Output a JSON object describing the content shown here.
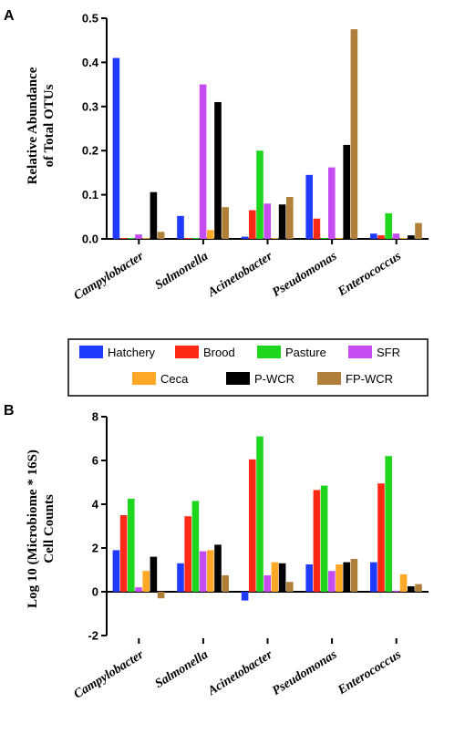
{
  "legend": {
    "entries": [
      {
        "name": "Hatchery",
        "color": "#1f3bff"
      },
      {
        "name": "Brood",
        "color": "#ff2a16"
      },
      {
        "name": "Pasture",
        "color": "#1ed61e"
      },
      {
        "name": "SFR",
        "color": "#c44cf0"
      },
      {
        "name": "Ceca",
        "color": "#ffa726"
      },
      {
        "name": "P-WCR",
        "color": "#000000"
      },
      {
        "name": "FP-WCR",
        "color": "#b0803a"
      }
    ]
  },
  "chart_data": [
    {
      "panel": "A",
      "type": "bar",
      "ylabel": [
        "Relative Abundance",
        "of Total OTUs"
      ],
      "ylim": [
        0,
        0.5
      ],
      "yticks": [
        "0.0",
        "0.1",
        "0.2",
        "0.3",
        "0.4",
        "0.5"
      ],
      "categories": [
        "Campylobacter",
        "Salmonella",
        "Acinetobacter",
        "Pseudomonas",
        "Enterococcus"
      ],
      "series": [
        {
          "name": "Hatchery",
          "values": [
            0.41,
            0.052,
            0.005,
            0.145,
            0.012
          ]
        },
        {
          "name": "Brood",
          "values": [
            0.002,
            0.002,
            0.065,
            0.046,
            0.008
          ]
        },
        {
          "name": "Pasture",
          "values": [
            0.002,
            0.002,
            0.2,
            0.002,
            0.058
          ]
        },
        {
          "name": "SFR",
          "values": [
            0.01,
            0.35,
            0.08,
            0.162,
            0.012
          ]
        },
        {
          "name": "Ceca",
          "values": [
            0.002,
            0.02,
            0.002,
            0.002,
            0.002
          ]
        },
        {
          "name": "P-WCR",
          "values": [
            0.106,
            0.31,
            0.078,
            0.213,
            0.008
          ]
        },
        {
          "name": "FP-WCR",
          "values": [
            0.016,
            0.072,
            0.095,
            0.475,
            0.036
          ]
        }
      ]
    },
    {
      "panel": "B",
      "type": "bar",
      "ylabel": [
        "Log 10 (Microbiome * 16S)",
        "Cell Counts"
      ],
      "ylim": [
        -2,
        8
      ],
      "yticks": [
        "-2",
        "0",
        "2",
        "4",
        "6",
        "8"
      ],
      "categories": [
        "Campylobacter",
        "Salmonella",
        "Acinetobacter",
        "Pseudomonas",
        "Enterococcus"
      ],
      "series": [
        {
          "name": "Hatchery",
          "values": [
            1.9,
            1.3,
            -0.4,
            1.25,
            1.35
          ]
        },
        {
          "name": "Brood",
          "values": [
            3.5,
            3.45,
            6.05,
            4.65,
            4.95
          ]
        },
        {
          "name": "Pasture",
          "values": [
            4.25,
            4.15,
            7.1,
            4.85,
            6.2
          ]
        },
        {
          "name": "SFR",
          "values": [
            0.2,
            1.85,
            0.75,
            0.95,
            0.05
          ]
        },
        {
          "name": "Ceca",
          "values": [
            0.95,
            1.9,
            1.35,
            1.25,
            0.8
          ]
        },
        {
          "name": "P-WCR",
          "values": [
            1.6,
            2.15,
            1.3,
            1.35,
            0.25
          ]
        },
        {
          "name": "FP-WCR",
          "values": [
            -0.3,
            0.75,
            0.45,
            1.5,
            0.35
          ]
        }
      ]
    }
  ]
}
